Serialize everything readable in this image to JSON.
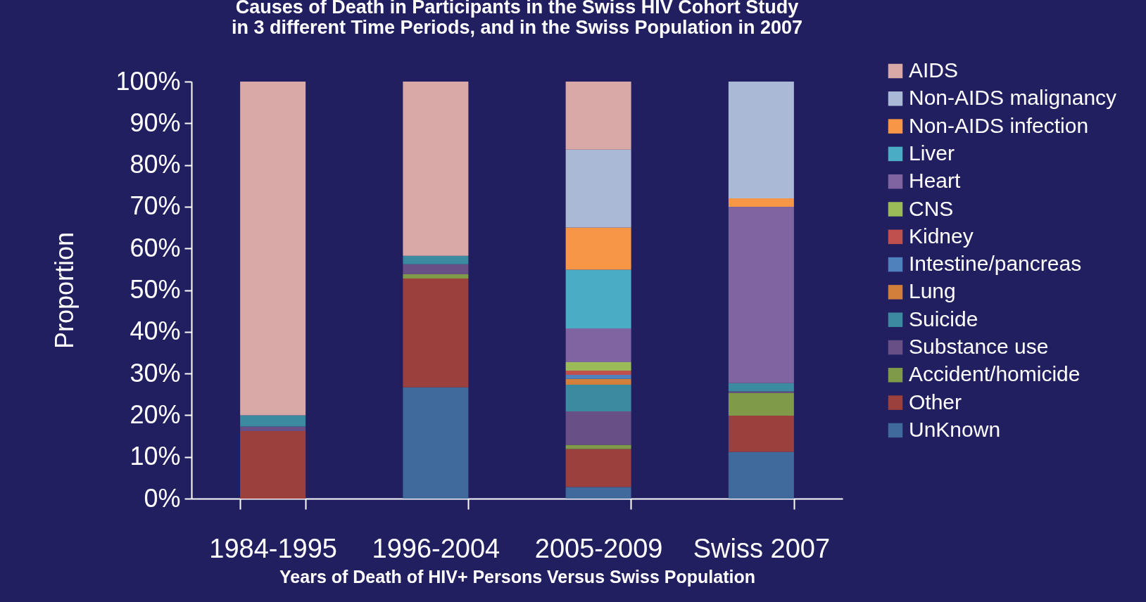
{
  "chart_data": {
    "type": "bar",
    "stacked": true,
    "title": "Causes of Death in Participants in the Swiss HIV Cohort Study\nin 3 different Time Periods, and in the Swiss Population in 2007",
    "xlabel": "Years of Death of HIV+ Persons Versus Swiss Population",
    "ylabel": "Proportion",
    "categories": [
      "1984-1995",
      "1996-2004",
      "2005-2009",
      "Swiss 2007"
    ],
    "series": [
      {
        "name": "UnKnown",
        "color": "#406a9c",
        "values": [
          null,
          26.7,
          2.8,
          11.2
        ]
      },
      {
        "name": "Other",
        "color": "#9c403e",
        "values": [
          16.2,
          26.1,
          9.1,
          8.7
        ]
      },
      {
        "name": "Accident/homicide",
        "color": "#7f9a48",
        "values": [
          null,
          1.0,
          1.0,
          5.5
        ]
      },
      {
        "name": "Substance use",
        "color": "#684f86",
        "values": [
          1.1,
          2.4,
          8.0,
          0.3
        ]
      },
      {
        "name": "Suicide",
        "color": "#3b8aa0",
        "values": [
          2.7,
          2.0,
          6.4,
          2.0
        ]
      },
      {
        "name": "Lung",
        "color": "#d17f3a",
        "values": [
          null,
          null,
          1.4,
          null
        ]
      },
      {
        "name": "Intestine/pancreas",
        "color": "#4f81bd",
        "values": [
          null,
          null,
          1.0,
          null
        ]
      },
      {
        "name": "Kidney",
        "color": "#c0504d",
        "values": [
          null,
          null,
          1.0,
          null
        ]
      },
      {
        "name": "CNS",
        "color": "#9bbb59",
        "values": [
          null,
          null,
          2.0,
          null
        ]
      },
      {
        "name": "Heart",
        "color": "#8064a2",
        "values": [
          null,
          null,
          8.1,
          42.3
        ]
      },
      {
        "name": "Liver",
        "color": "#4bacc6",
        "values": [
          null,
          null,
          14.1,
          null
        ]
      },
      {
        "name": "Non-AIDS infection",
        "color": "#f79646",
        "values": [
          null,
          null,
          10.1,
          2.0
        ]
      },
      {
        "name": "Non-AIDS malignancy",
        "color": "#aab9d6",
        "values": [
          null,
          null,
          18.7,
          28.0
        ]
      },
      {
        "name": "AIDS",
        "color": "#d9a9a8",
        "values": [
          80.0,
          41.8,
          16.3,
          null
        ]
      }
    ],
    "ylim": [
      0,
      100
    ],
    "yticks": [
      {
        "value": 0,
        "label": "0%"
      },
      {
        "value": 10,
        "label": "10%"
      },
      {
        "value": 20,
        "label": "20%"
      },
      {
        "value": 30,
        "label": "30%"
      },
      {
        "value": 40,
        "label": "40%"
      },
      {
        "value": 50,
        "label": "50%"
      },
      {
        "value": 60,
        "label": "60%"
      },
      {
        "value": 70,
        "label": "70%"
      },
      {
        "value": 80,
        "label": "80%"
      },
      {
        "value": 90,
        "label": "90%"
      },
      {
        "value": 100,
        "label": "100%"
      }
    ],
    "grid": false,
    "legend": "right"
  }
}
